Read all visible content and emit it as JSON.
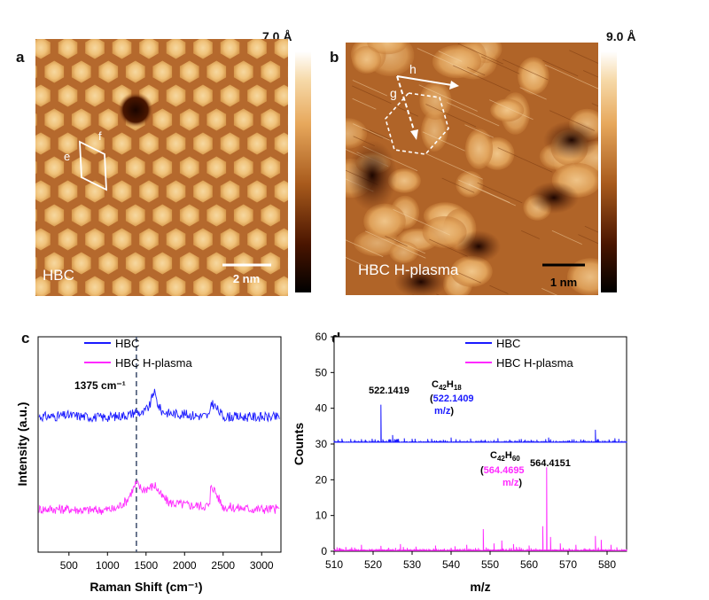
{
  "panels": {
    "a": {
      "letter": "a",
      "sample_label": "HBC",
      "scale_bar": "2 nm",
      "color_scale_max": "7.0 Å",
      "vector_labels": [
        "e",
        "f"
      ]
    },
    "b": {
      "letter": "b",
      "sample_label": "HBC H-plasma",
      "scale_bar": "1 nm",
      "color_scale_max": "9.0 Å",
      "vector_labels": [
        "h",
        "g"
      ]
    },
    "c": {
      "letter": "c",
      "annotation": "1375 cm⁻¹"
    },
    "d": {
      "letter": "d",
      "peak1_value": "522.1419",
      "peak1_formula_main": "C",
      "peak1_formula_sub1": "42",
      "peak1_formula_h": "H",
      "peak1_formula_sub2": "18",
      "peak1_calc": "522.1409",
      "peak2_value": "564.4151",
      "peak2_formula_main": "C",
      "peak2_formula_sub1": "42",
      "peak2_formula_h": "H",
      "peak2_formula_sub2": "60",
      "peak2_calc": "564.4695",
      "unit_mz": "m/z",
      "paren_open": "(",
      "paren_close": ")"
    }
  },
  "chart_data": [
    {
      "type": "line",
      "panel": "c",
      "xlabel": "Raman Shift (cm⁻¹)",
      "ylabel": "Intensity (a.u.)",
      "xlim": [
        100,
        3250
      ],
      "x_ticks": [
        500,
        1000,
        1500,
        2000,
        2500,
        3000
      ],
      "y_ticks_shown": false,
      "legend_position": "top-right",
      "reference_line_x": 1375,
      "series": [
        {
          "name": "HBC",
          "color": "#1a1aff",
          "x": [
            100,
            300,
            500,
            700,
            900,
            1100,
            1300,
            1375,
            1450,
            1550,
            1600,
            1650,
            1700,
            1800,
            2000,
            2200,
            2330,
            2340,
            2500,
            2700,
            2900,
            3100,
            3250
          ],
          "y": [
            0.63,
            0.63,
            0.635,
            0.63,
            0.625,
            0.63,
            0.64,
            0.655,
            0.64,
            0.68,
            0.75,
            0.69,
            0.655,
            0.645,
            0.64,
            0.632,
            0.632,
            0.7,
            0.63,
            0.628,
            0.628,
            0.627,
            0.627
          ]
        },
        {
          "name": "HBC H-plasma",
          "color": "#ff2aff",
          "x": [
            100,
            300,
            500,
            700,
            900,
            1100,
            1250,
            1375,
            1450,
            1550,
            1620,
            1700,
            1800,
            2000,
            2200,
            2330,
            2340,
            2500,
            2700,
            2900,
            3100,
            3250
          ],
          "y": [
            0.2,
            0.2,
            0.2,
            0.195,
            0.195,
            0.2,
            0.24,
            0.32,
            0.29,
            0.3,
            0.31,
            0.26,
            0.23,
            0.22,
            0.215,
            0.215,
            0.32,
            0.21,
            0.205,
            0.2,
            0.2,
            0.2
          ]
        }
      ]
    },
    {
      "type": "line",
      "panel": "d",
      "xlabel": "m/z",
      "ylabel": "Counts",
      "xlim": [
        510,
        585
      ],
      "ylim": [
        0,
        60
      ],
      "x_ticks": [
        510,
        520,
        530,
        540,
        550,
        560,
        570,
        580
      ],
      "y_ticks": [
        0,
        10,
        20,
        30,
        40,
        50,
        60
      ],
      "legend_position": "top-right",
      "series": [
        {
          "name": "HBC",
          "color": "#1a1aff",
          "baseline": 30.5,
          "peaks": [
            [
              512,
              31.5
            ],
            [
              518,
              31.2
            ],
            [
              522.1,
              41
            ],
            [
              525,
              32.5
            ],
            [
              528,
              31.6
            ],
            [
              534,
              31.4
            ],
            [
              540,
              31.8
            ],
            [
              545,
              31.5
            ],
            [
              552,
              31.6
            ],
            [
              558,
              31.4
            ],
            [
              565,
              31.8
            ],
            [
              571,
              31.3
            ],
            [
              577,
              34
            ],
            [
              582,
              31.6
            ]
          ]
        },
        {
          "name": "HBC H-plasma",
          "color": "#ff2aff",
          "baseline": 0.2,
          "peaks": [
            [
              513,
              1.2
            ],
            [
              517,
              1.8
            ],
            [
              522,
              1.5
            ],
            [
              527,
              2
            ],
            [
              531,
              1.3
            ],
            [
              536,
              1.6
            ],
            [
              541,
              1.4
            ],
            [
              544,
              1.8
            ],
            [
              548.3,
              6.2
            ],
            [
              551,
              2.2
            ],
            [
              553,
              3
            ],
            [
              556,
              2
            ],
            [
              560,
              1.6
            ],
            [
              563.5,
              7
            ],
            [
              564.4,
              23.5
            ],
            [
              565.5,
              4
            ],
            [
              568,
              2.2
            ],
            [
              572,
              1.8
            ],
            [
              577,
              4.3
            ],
            [
              578.5,
              3.2
            ],
            [
              581,
              1.8
            ]
          ]
        }
      ]
    }
  ]
}
